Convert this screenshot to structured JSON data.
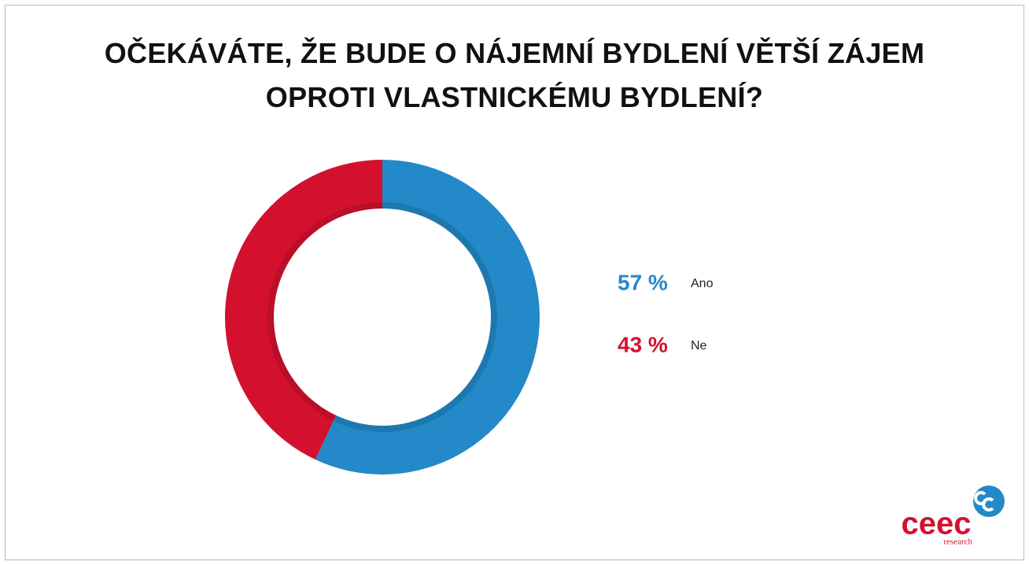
{
  "chart_data": {
    "type": "pie",
    "title": "OČEKÁVÁTE, ŽE BUDE O NÁJEMNÍ BYDLENÍ VĚTŠÍ ZÁJEM OPROTI VLASTNICKÉMU BYDLENÍ?",
    "categories": [
      "Ano",
      "Ne"
    ],
    "values": [
      57,
      43
    ],
    "value_labels": [
      "57 %",
      "43 %"
    ],
    "colors": [
      "#2389c9",
      "#d4102f"
    ]
  },
  "branding": {
    "name": "ceec",
    "sub": "research"
  }
}
